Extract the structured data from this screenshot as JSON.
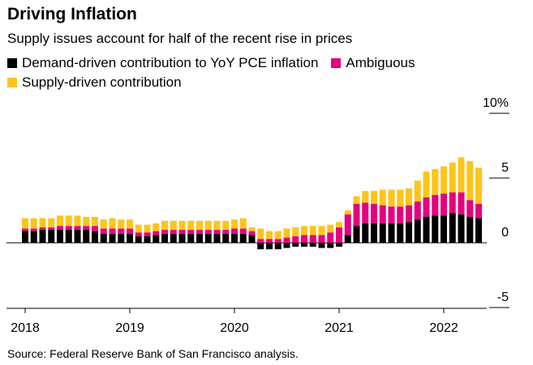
{
  "chart_data": {
    "type": "bar",
    "stacked": true,
    "title": "Driving Inflation",
    "subtitle": "Supply issues account for half of the recent rise in prices",
    "source": "Source: Federal Reserve Bank of San Francisco analysis.",
    "ylim": [
      -5,
      10
    ],
    "y_ticks": [
      {
        "value": 10,
        "label": "10%"
      },
      {
        "value": 5,
        "label": "5"
      },
      {
        "value": 0,
        "label": "0"
      },
      {
        "value": -5,
        "label": "-5"
      }
    ],
    "x_ticks": [
      {
        "index": 0,
        "label": "2018"
      },
      {
        "index": 12,
        "label": "2019"
      },
      {
        "index": 24,
        "label": "2020"
      },
      {
        "index": 36,
        "label": "2021"
      },
      {
        "index": 48,
        "label": "2022"
      }
    ],
    "categories": [
      "2018-01",
      "2018-02",
      "2018-03",
      "2018-04",
      "2018-05",
      "2018-06",
      "2018-07",
      "2018-08",
      "2018-09",
      "2018-10",
      "2018-11",
      "2018-12",
      "2019-01",
      "2019-02",
      "2019-03",
      "2019-04",
      "2019-05",
      "2019-06",
      "2019-07",
      "2019-08",
      "2019-09",
      "2019-10",
      "2019-11",
      "2019-12",
      "2020-01",
      "2020-02",
      "2020-03",
      "2020-04",
      "2020-05",
      "2020-06",
      "2020-07",
      "2020-08",
      "2020-09",
      "2020-10",
      "2020-11",
      "2020-12",
      "2021-01",
      "2021-02",
      "2021-03",
      "2021-04",
      "2021-05",
      "2021-06",
      "2021-07",
      "2021-08",
      "2021-09",
      "2021-10",
      "2021-11",
      "2021-12",
      "2022-01",
      "2022-02",
      "2022-03",
      "2022-04",
      "2022-05"
    ],
    "series": [
      {
        "name": "Demand-driven contribution to YoY PCE inflation",
        "color": "#000000",
        "values": [
          0.9,
          0.9,
          1.0,
          1.0,
          1.0,
          1.0,
          1.0,
          1.0,
          0.9,
          0.7,
          0.7,
          0.7,
          0.7,
          0.5,
          0.5,
          0.6,
          0.7,
          0.7,
          0.7,
          0.7,
          0.7,
          0.7,
          0.7,
          0.7,
          0.7,
          0.7,
          0.6,
          -0.5,
          -0.5,
          -0.5,
          -0.4,
          -0.3,
          -0.3,
          -0.3,
          -0.4,
          -0.4,
          -0.3,
          0.6,
          1.3,
          1.5,
          1.5,
          1.5,
          1.5,
          1.5,
          1.6,
          1.8,
          2.0,
          2.1,
          2.1,
          2.3,
          2.2,
          2.0,
          1.9
        ]
      },
      {
        "name": "Ambiguous",
        "color": "#e5007e",
        "values": [
          0.2,
          0.2,
          0.2,
          0.2,
          0.3,
          0.3,
          0.3,
          0.3,
          0.4,
          0.4,
          0.4,
          0.4,
          0.4,
          0.3,
          0.3,
          0.3,
          0.3,
          0.3,
          0.3,
          0.3,
          0.3,
          0.3,
          0.3,
          0.3,
          0.4,
          0.4,
          0.3,
          0.3,
          0.3,
          0.3,
          0.4,
          0.5,
          0.6,
          0.6,
          0.6,
          0.8,
          1.2,
          1.6,
          1.7,
          1.6,
          1.5,
          1.4,
          1.3,
          1.3,
          1.3,
          1.4,
          1.5,
          1.6,
          1.7,
          1.6,
          1.7,
          1.3,
          1.1
        ]
      },
      {
        "name": "Supply-driven contribution",
        "color": "#fdc51b",
        "values": [
          0.8,
          0.8,
          0.7,
          0.7,
          0.8,
          0.8,
          0.8,
          0.7,
          0.7,
          0.7,
          0.8,
          0.7,
          0.7,
          0.6,
          0.6,
          0.6,
          0.7,
          0.7,
          0.7,
          0.7,
          0.7,
          0.7,
          0.7,
          0.7,
          0.7,
          0.8,
          0.3,
          0.8,
          0.6,
          0.6,
          0.7,
          0.7,
          0.7,
          0.7,
          0.7,
          0.6,
          0.4,
          0.3,
          0.6,
          0.9,
          1.0,
          1.2,
          1.3,
          1.3,
          1.3,
          1.6,
          2.0,
          2.0,
          2.1,
          2.3,
          2.7,
          3.0,
          2.8
        ]
      }
    ]
  }
}
